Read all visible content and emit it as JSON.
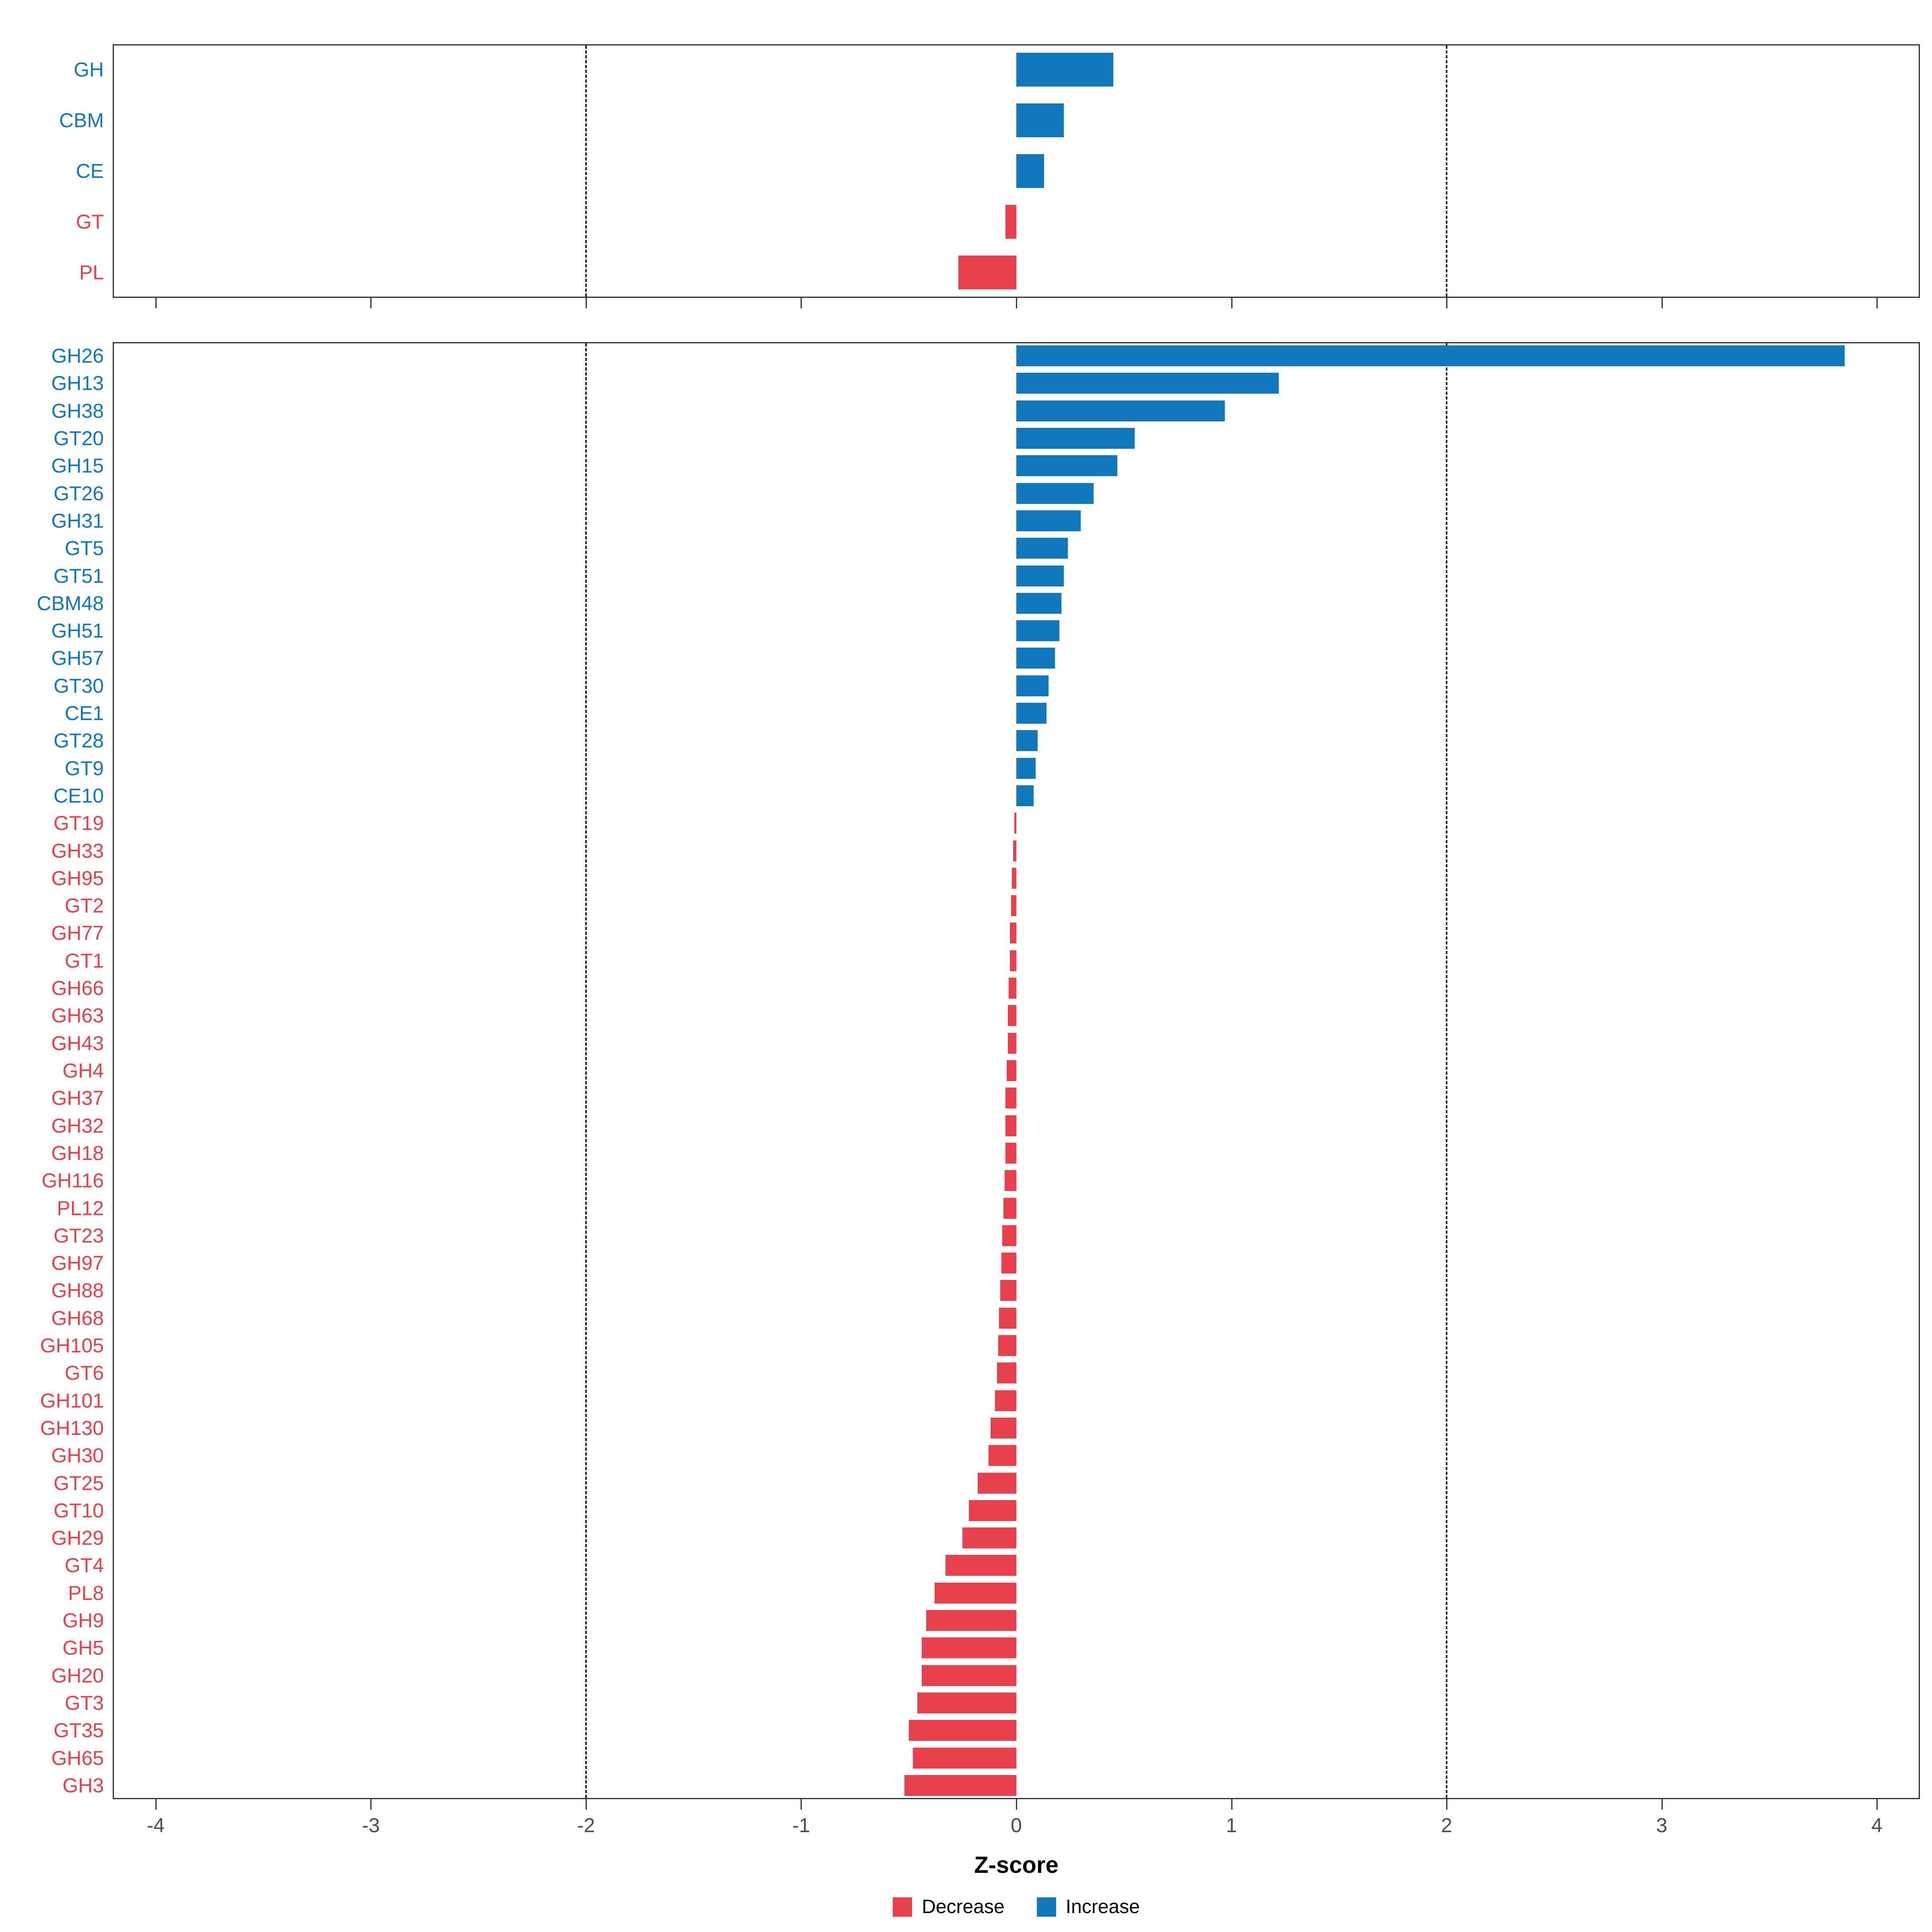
{
  "colors": {
    "increase": "#1278BD",
    "decrease": "#E9404D",
    "axis_text": "#4d4d4d",
    "panel_border": "#333333",
    "guide_line": "#222222"
  },
  "x_axis": {
    "label": "Z-score",
    "ticks": [
      -4,
      -3,
      -2,
      -1,
      0,
      1,
      2,
      3,
      4
    ],
    "xlim": [
      -4.2,
      4.2
    ],
    "guides": [
      -2,
      2
    ]
  },
  "legend": {
    "items": [
      {
        "label": "Decrease",
        "color_key": "decrease"
      },
      {
        "label": "Increase",
        "color_key": "increase"
      }
    ]
  },
  "chart_data": [
    {
      "type": "bar",
      "orientation": "horizontal",
      "panel": "top",
      "title": "",
      "xlabel": "Z-score",
      "xlim": [
        -4.2,
        4.2
      ],
      "categories": [
        "GH",
        "CBM",
        "CE",
        "GT",
        "PL"
      ],
      "values": [
        0.45,
        0.22,
        0.13,
        -0.05,
        -0.27
      ]
    },
    {
      "type": "bar",
      "orientation": "horizontal",
      "panel": "bottom",
      "title": "",
      "xlabel": "Z-score",
      "xlim": [
        -4.2,
        4.2
      ],
      "categories": [
        "GH26",
        "GH13",
        "GH38",
        "GT20",
        "GH15",
        "GT26",
        "GH31",
        "GT5",
        "GT51",
        "CBM48",
        "GH51",
        "GH57",
        "GT30",
        "CE1",
        "GT28",
        "GT9",
        "CE10",
        "GT19",
        "GH33",
        "GH95",
        "GT2",
        "GH77",
        "GT1",
        "GH66",
        "GH63",
        "GH43",
        "GH4",
        "GH37",
        "GH32",
        "GH18",
        "GH116",
        "PL12",
        "GT23",
        "GH97",
        "GH88",
        "GH68",
        "GH105",
        "GT6",
        "GH101",
        "GH130",
        "GH30",
        "GT25",
        "GT10",
        "GH29",
        "GT4",
        "PL8",
        "GH9",
        "GH5",
        "GH20",
        "GT3",
        "GT35",
        "GH65",
        "GH3"
      ],
      "values": [
        3.85,
        1.22,
        0.97,
        0.55,
        0.47,
        0.36,
        0.3,
        0.24,
        0.22,
        0.21,
        0.2,
        0.18,
        0.15,
        0.14,
        0.1,
        0.09,
        0.08,
        -0.01,
        -0.015,
        -0.02,
        -0.025,
        -0.03,
        -0.03,
        -0.035,
        -0.04,
        -0.04,
        -0.045,
        -0.05,
        -0.05,
        -0.05,
        -0.055,
        -0.06,
        -0.065,
        -0.07,
        -0.075,
        -0.08,
        -0.085,
        -0.09,
        -0.1,
        -0.12,
        -0.13,
        -0.18,
        -0.22,
        -0.25,
        -0.33,
        -0.38,
        -0.42,
        -0.44,
        -0.44,
        -0.46,
        -0.5,
        -0.48,
        -0.52
      ]
    }
  ]
}
